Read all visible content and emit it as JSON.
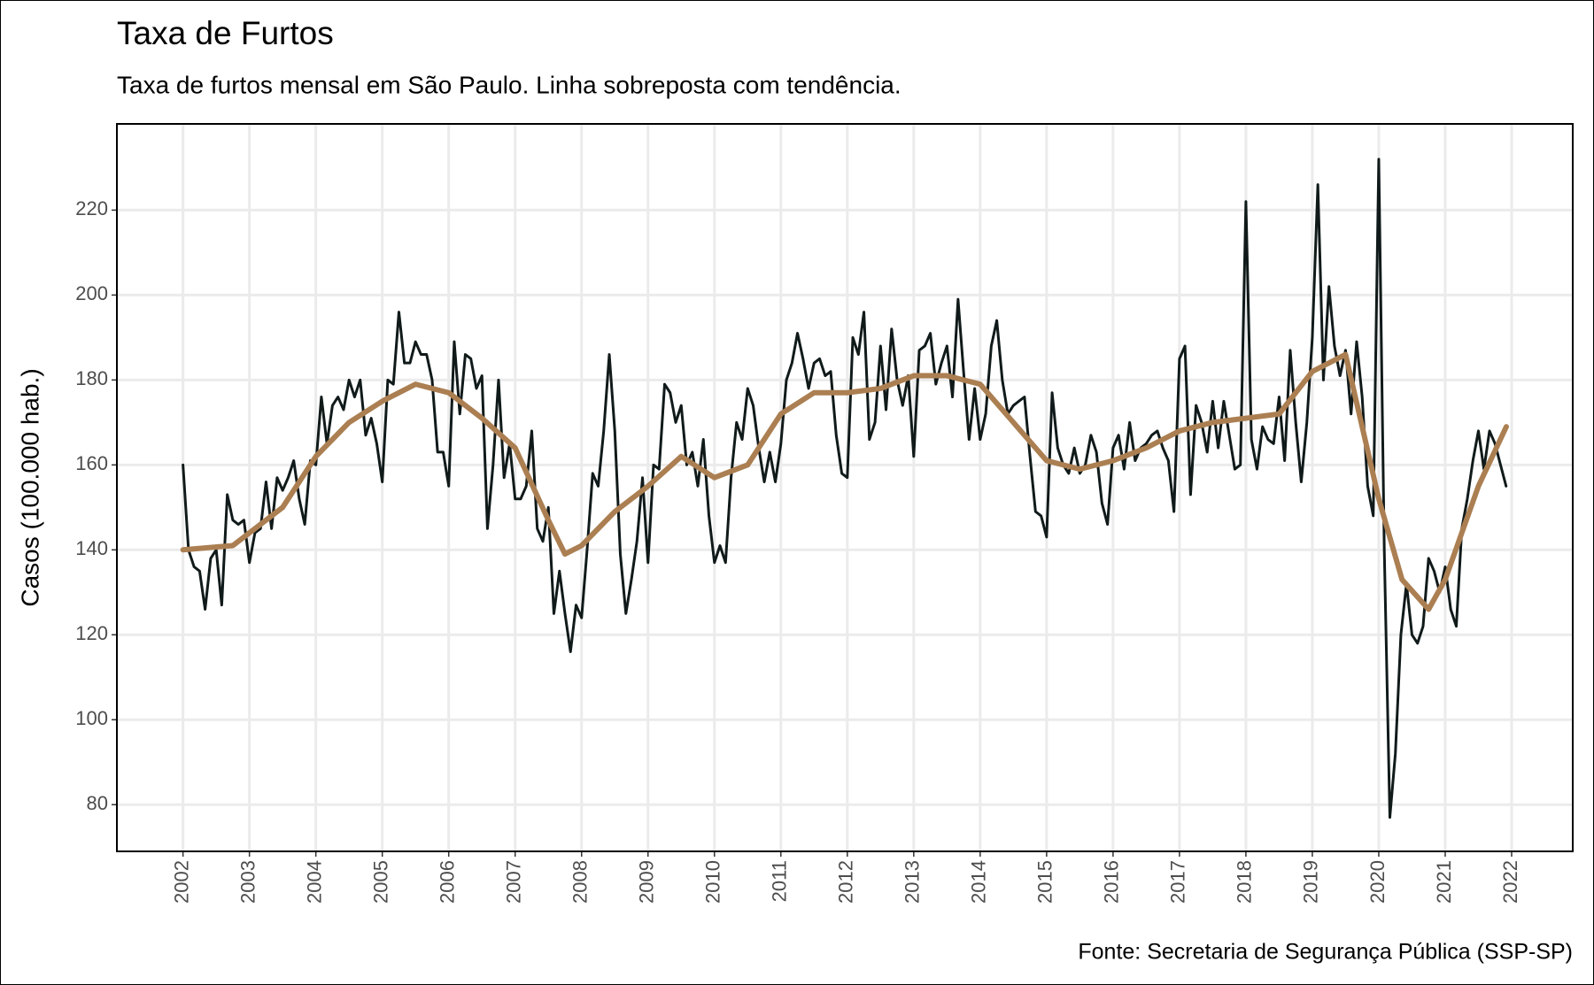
{
  "chart_data": {
    "type": "line",
    "title": "Taxa de Furtos",
    "subtitle": "Taxa de furtos mensal em São Paulo. Linha sobreposta com tendência.",
    "y_label": "Casos (100.000 hab.)",
    "caption": "Fonte: Secretaria de Segurança Pública (SSP-SP)",
    "xlim": [
      2001.005,
      2022.92
    ],
    "ylim": [
      69,
      240.3
    ],
    "xticks": [
      2002,
      2003,
      2004,
      2005,
      2006,
      2007,
      2008,
      2009,
      2010,
      2011,
      2012,
      2013,
      2014,
      2015,
      2016,
      2017,
      2018,
      2019,
      2020,
      2021,
      2022
    ],
    "yticks": [
      80,
      100,
      120,
      140,
      160,
      180,
      200,
      220
    ],
    "grid": true,
    "series": [
      {
        "color": "#111a1a",
        "width": 3,
        "x": [
          2002,
          2002.083,
          2002.167,
          2002.25,
          2002.333,
          2002.417,
          2002.5,
          2002.583,
          2002.667,
          2002.75,
          2002.833,
          2002.917,
          2003,
          2003.083,
          2003.167,
          2003.25,
          2003.333,
          2003.417,
          2003.5,
          2003.583,
          2003.667,
          2003.75,
          2003.833,
          2003.917,
          2004,
          2004.083,
          2004.167,
          2004.25,
          2004.333,
          2004.417,
          2004.5,
          2004.583,
          2004.667,
          2004.75,
          2004.833,
          2004.917,
          2005,
          2005.083,
          2005.167,
          2005.25,
          2005.333,
          2005.417,
          2005.5,
          2005.583,
          2005.667,
          2005.75,
          2005.833,
          2005.917,
          2006,
          2006.083,
          2006.167,
          2006.25,
          2006.333,
          2006.417,
          2006.5,
          2006.583,
          2006.667,
          2006.75,
          2006.833,
          2006.917,
          2007,
          2007.083,
          2007.167,
          2007.25,
          2007.333,
          2007.417,
          2007.5,
          2007.583,
          2007.667,
          2007.75,
          2007.833,
          2007.917,
          2008,
          2008.083,
          2008.167,
          2008.25,
          2008.333,
          2008.417,
          2008.5,
          2008.583,
          2008.667,
          2008.75,
          2008.833,
          2008.917,
          2009,
          2009.083,
          2009.167,
          2009.25,
          2009.333,
          2009.417,
          2009.5,
          2009.583,
          2009.667,
          2009.75,
          2009.833,
          2009.917,
          2010,
          2010.083,
          2010.167,
          2010.25,
          2010.333,
          2010.417,
          2010.5,
          2010.583,
          2010.667,
          2010.75,
          2010.833,
          2010.917,
          2011,
          2011.083,
          2011.167,
          2011.25,
          2011.333,
          2011.417,
          2011.5,
          2011.583,
          2011.667,
          2011.75,
          2011.833,
          2011.917,
          2012,
          2012.083,
          2012.167,
          2012.25,
          2012.333,
          2012.417,
          2012.5,
          2012.583,
          2012.667,
          2012.75,
          2012.833,
          2012.917,
          2013,
          2013.083,
          2013.167,
          2013.25,
          2013.333,
          2013.417,
          2013.5,
          2013.583,
          2013.667,
          2013.75,
          2013.833,
          2013.917,
          2014,
          2014.083,
          2014.167,
          2014.25,
          2014.333,
          2014.417,
          2014.5,
          2014.583,
          2014.667,
          2014.75,
          2014.833,
          2014.917,
          2015,
          2015.083,
          2015.167,
          2015.25,
          2015.333,
          2015.417,
          2015.5,
          2015.583,
          2015.667,
          2015.75,
          2015.833,
          2015.917,
          2016,
          2016.083,
          2016.167,
          2016.25,
          2016.333,
          2016.417,
          2016.5,
          2016.583,
          2016.667,
          2016.75,
          2016.833,
          2016.917,
          2017,
          2017.083,
          2017.167,
          2017.25,
          2017.333,
          2017.417,
          2017.5,
          2017.583,
          2017.667,
          2017.75,
          2017.833,
          2017.917,
          2018,
          2018.083,
          2018.167,
          2018.25,
          2018.333,
          2018.417,
          2018.5,
          2018.583,
          2018.667,
          2018.75,
          2018.833,
          2018.917,
          2019,
          2019.083,
          2019.167,
          2019.25,
          2019.333,
          2019.417,
          2019.5,
          2019.583,
          2019.667,
          2019.75,
          2019.833,
          2019.917,
          2020,
          2020.083,
          2020.167,
          2020.25,
          2020.333,
          2020.417,
          2020.5,
          2020.583,
          2020.667,
          2020.75,
          2020.833,
          2020.917,
          2021,
          2021.083,
          2021.167,
          2021.25,
          2021.333,
          2021.417,
          2021.5,
          2021.583,
          2021.667,
          2021.75,
          2021.833,
          2021.917
        ],
        "values": [
          160,
          140,
          136,
          135,
          126,
          138,
          140,
          127,
          153,
          147,
          146,
          147,
          137,
          144,
          145,
          156,
          145,
          157,
          154,
          157,
          161,
          152,
          146,
          161,
          160,
          176,
          165,
          174,
          176,
          173,
          180,
          176,
          180,
          167,
          171,
          165,
          156,
          180,
          179,
          196,
          184,
          184,
          189,
          186,
          186,
          180,
          163,
          163,
          155,
          189,
          172,
          186,
          185,
          178,
          181,
          145,
          160,
          180,
          157,
          165,
          152,
          152,
          155,
          168,
          145,
          142,
          150,
          125,
          135,
          125,
          116,
          127,
          124,
          140,
          158,
          155,
          168,
          186,
          168,
          139,
          125,
          133,
          142,
          157,
          137,
          160,
          159,
          179,
          177,
          170,
          174,
          160,
          163,
          155,
          166,
          148,
          137,
          141,
          137,
          157,
          170,
          166,
          178,
          174,
          164,
          156,
          163,
          156,
          165,
          180,
          184,
          191,
          185,
          178,
          184,
          185,
          181,
          182,
          167,
          158,
          157,
          190,
          186,
          196,
          166,
          170,
          188,
          173,
          192,
          180,
          174,
          181,
          162,
          187,
          188,
          191,
          179,
          184,
          188,
          176,
          199,
          182,
          166,
          178,
          166,
          172,
          188,
          194,
          180,
          172,
          174,
          175,
          176,
          162,
          149,
          148,
          143,
          177,
          164,
          160,
          158,
          164,
          158,
          160,
          167,
          163,
          151,
          146,
          164,
          167,
          159,
          170,
          161,
          164,
          165,
          167,
          168,
          164,
          161,
          149,
          185,
          188,
          153,
          174,
          170,
          163,
          175,
          164,
          175,
          167,
          159,
          160,
          222,
          166,
          159,
          169,
          166,
          165,
          176,
          161,
          187,
          170,
          156,
          170,
          190,
          226,
          180,
          202,
          188,
          181,
          187,
          172,
          189,
          176,
          155,
          148,
          232,
          140,
          77,
          92,
          120,
          132,
          120,
          118,
          122,
          138,
          135,
          130,
          136,
          126,
          122,
          145,
          152,
          161,
          168,
          159,
          168,
          165,
          160,
          155
        ]
      },
      {
        "color": "#ab7f52",
        "width": 6,
        "x": [
          2002,
          2002.75,
          2003.5,
          2004,
          2004.5,
          2005,
          2005.5,
          2006,
          2006.5,
          2007,
          2007.5,
          2007.75,
          2008,
          2008.5,
          2009,
          2009.5,
          2010,
          2010.5,
          2011,
          2011.5,
          2012,
          2012.5,
          2013,
          2013.5,
          2014,
          2014.5,
          2015,
          2015.5,
          2016,
          2016.5,
          2017,
          2017.5,
          2018,
          2018.5,
          2019,
          2019.5,
          2020,
          2020.35,
          2020.75,
          2021,
          2021.5,
          2021.92
        ],
        "values": [
          140,
          141,
          150,
          162,
          170,
          175,
          179,
          177,
          171,
          164,
          147,
          139,
          141,
          149,
          155,
          162,
          157,
          160,
          172,
          177,
          177,
          178,
          181,
          181,
          179,
          170,
          161,
          159,
          161,
          164,
          168,
          170,
          171,
          172,
          182,
          186,
          152,
          133,
          126,
          133,
          155,
          169
        ]
      }
    ]
  }
}
